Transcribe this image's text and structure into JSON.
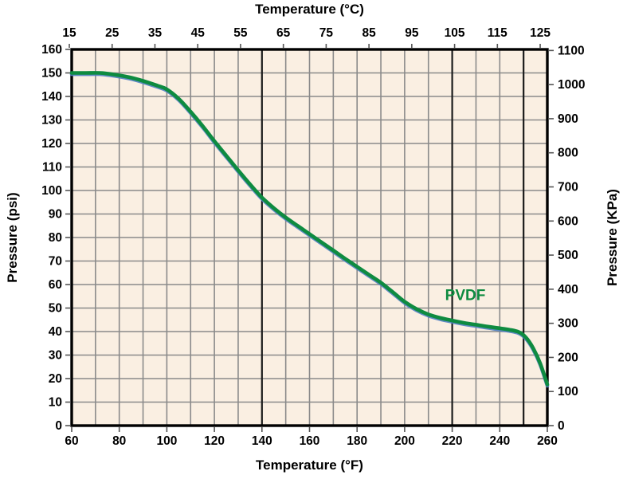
{
  "chart_data": {
    "type": "line",
    "axes": {
      "top": {
        "label": "Temperature (°C)",
        "unit": "°C",
        "ticks": [
          15,
          25,
          35,
          45,
          55,
          65,
          75,
          85,
          95,
          105,
          115,
          125
        ]
      },
      "bottom": {
        "label": "Temperature (°F)",
        "unit": "°F",
        "min": 60,
        "max": 260,
        "label_step": 20,
        "grid_step": 10,
        "ticks": [
          60,
          80,
          100,
          120,
          140,
          160,
          180,
          200,
          220,
          240,
          260
        ]
      },
      "left": {
        "label": "Pressure (psi)",
        "unit": "psi",
        "min": 0,
        "max": 160,
        "step": 10,
        "ticks": [
          0,
          10,
          20,
          30,
          40,
          50,
          60,
          70,
          80,
          90,
          100,
          110,
          120,
          130,
          140,
          150,
          160
        ]
      },
      "right": {
        "label": "Pressure (KPa)",
        "unit": "KPa",
        "min": 0,
        "max": 1100,
        "step": 100,
        "psi_per_kpa": 0.1450377,
        "ticks": [
          0,
          100,
          200,
          300,
          400,
          500,
          600,
          700,
          800,
          900,
          1000,
          1100
        ]
      }
    },
    "grid": {
      "on": true,
      "dark_vlines_f": [
        140,
        220,
        250
      ]
    },
    "series": [
      {
        "name": "PVDF",
        "x_unit": "°F",
        "y_unit": "psi",
        "points": [
          [
            60,
            150
          ],
          [
            66,
            150
          ],
          [
            72,
            150
          ],
          [
            78,
            149.3
          ],
          [
            84,
            148.2
          ],
          [
            90,
            146.6
          ],
          [
            96,
            144.6
          ],
          [
            100,
            143
          ],
          [
            105,
            139
          ],
          [
            110,
            133.5
          ],
          [
            115,
            127.5
          ],
          [
            120,
            121
          ],
          [
            125,
            114.8
          ],
          [
            130,
            108.6
          ],
          [
            135,
            102.6
          ],
          [
            140,
            97
          ],
          [
            145,
            92.5
          ],
          [
            150,
            88.5
          ],
          [
            155,
            85
          ],
          [
            160,
            81.5
          ],
          [
            165,
            78
          ],
          [
            170,
            74.5
          ],
          [
            175,
            71
          ],
          [
            180,
            67.6
          ],
          [
            185,
            64.2
          ],
          [
            190,
            60.8
          ],
          [
            195,
            56.8
          ],
          [
            200,
            52.7
          ],
          [
            205,
            49.6
          ],
          [
            210,
            47.3
          ],
          [
            215,
            45.8
          ],
          [
            220,
            44.7
          ],
          [
            225,
            43.7
          ],
          [
            230,
            42.9
          ],
          [
            235,
            42.1
          ],
          [
            240,
            41.4
          ],
          [
            244,
            40.8
          ],
          [
            248,
            39.8
          ],
          [
            251,
            37.5
          ],
          [
            254,
            33
          ],
          [
            257,
            26.5
          ],
          [
            260,
            17.5
          ]
        ]
      }
    ],
    "annotations": [
      {
        "text": "PVDF",
        "x_f": 225.5,
        "y_psi": 55.5
      }
    ],
    "legend": {
      "position": "inline-annotation"
    }
  },
  "style": {
    "plot_bg": "#FAEFE2",
    "grid_color": "#8A8A8A",
    "dark_line_color": "#1C1C1C",
    "frame_color": "#000000",
    "tick_color": "#555555",
    "text_color": "#000000",
    "curve_color": "#0E8B40",
    "curve_shadow_color": "#4F7EC2",
    "annotation_color": "#0E8B40"
  }
}
